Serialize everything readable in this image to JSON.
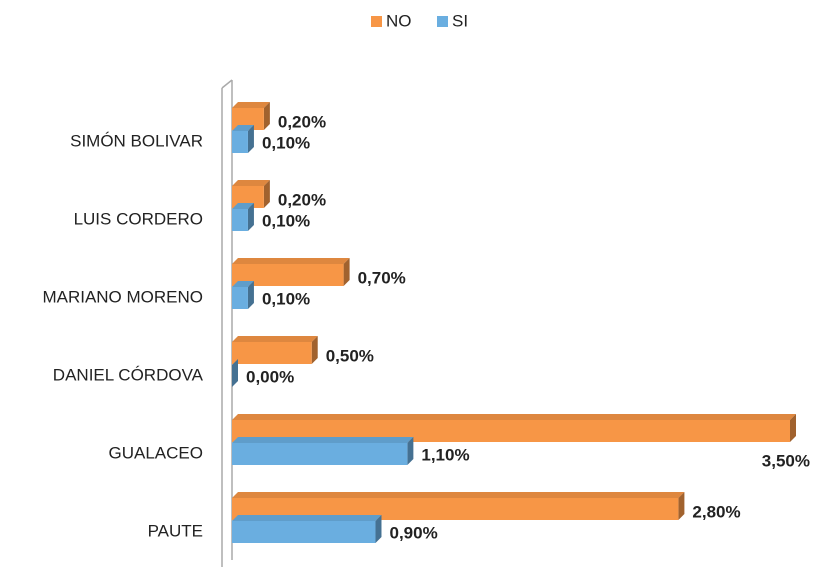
{
  "chart_data": {
    "type": "bar",
    "orientation": "horizontal",
    "categories": [
      "SIMÓN BOLIVAR",
      "LUIS CORDERO",
      "MARIANO MORENO",
      "DANIEL CÓRDOVA",
      "GUALACEO",
      "PAUTE"
    ],
    "series": [
      {
        "name": "NO",
        "color": "#f79646",
        "values": [
          0.2,
          0.2,
          0.7,
          0.5,
          3.5,
          2.8
        ],
        "value_labels": [
          "0,20%",
          "0,20%",
          "0,70%",
          "0,50%",
          "3,50%",
          "2,80%"
        ]
      },
      {
        "name": "SI",
        "color": "#6aaee0",
        "values": [
          0.1,
          0.1,
          0.1,
          0.0,
          1.1,
          0.9
        ],
        "value_labels": [
          "0,10%",
          "0,10%",
          "0,10%",
          "0,00%",
          "1,10%",
          "0,90%"
        ]
      }
    ],
    "legend": "top"
  }
}
